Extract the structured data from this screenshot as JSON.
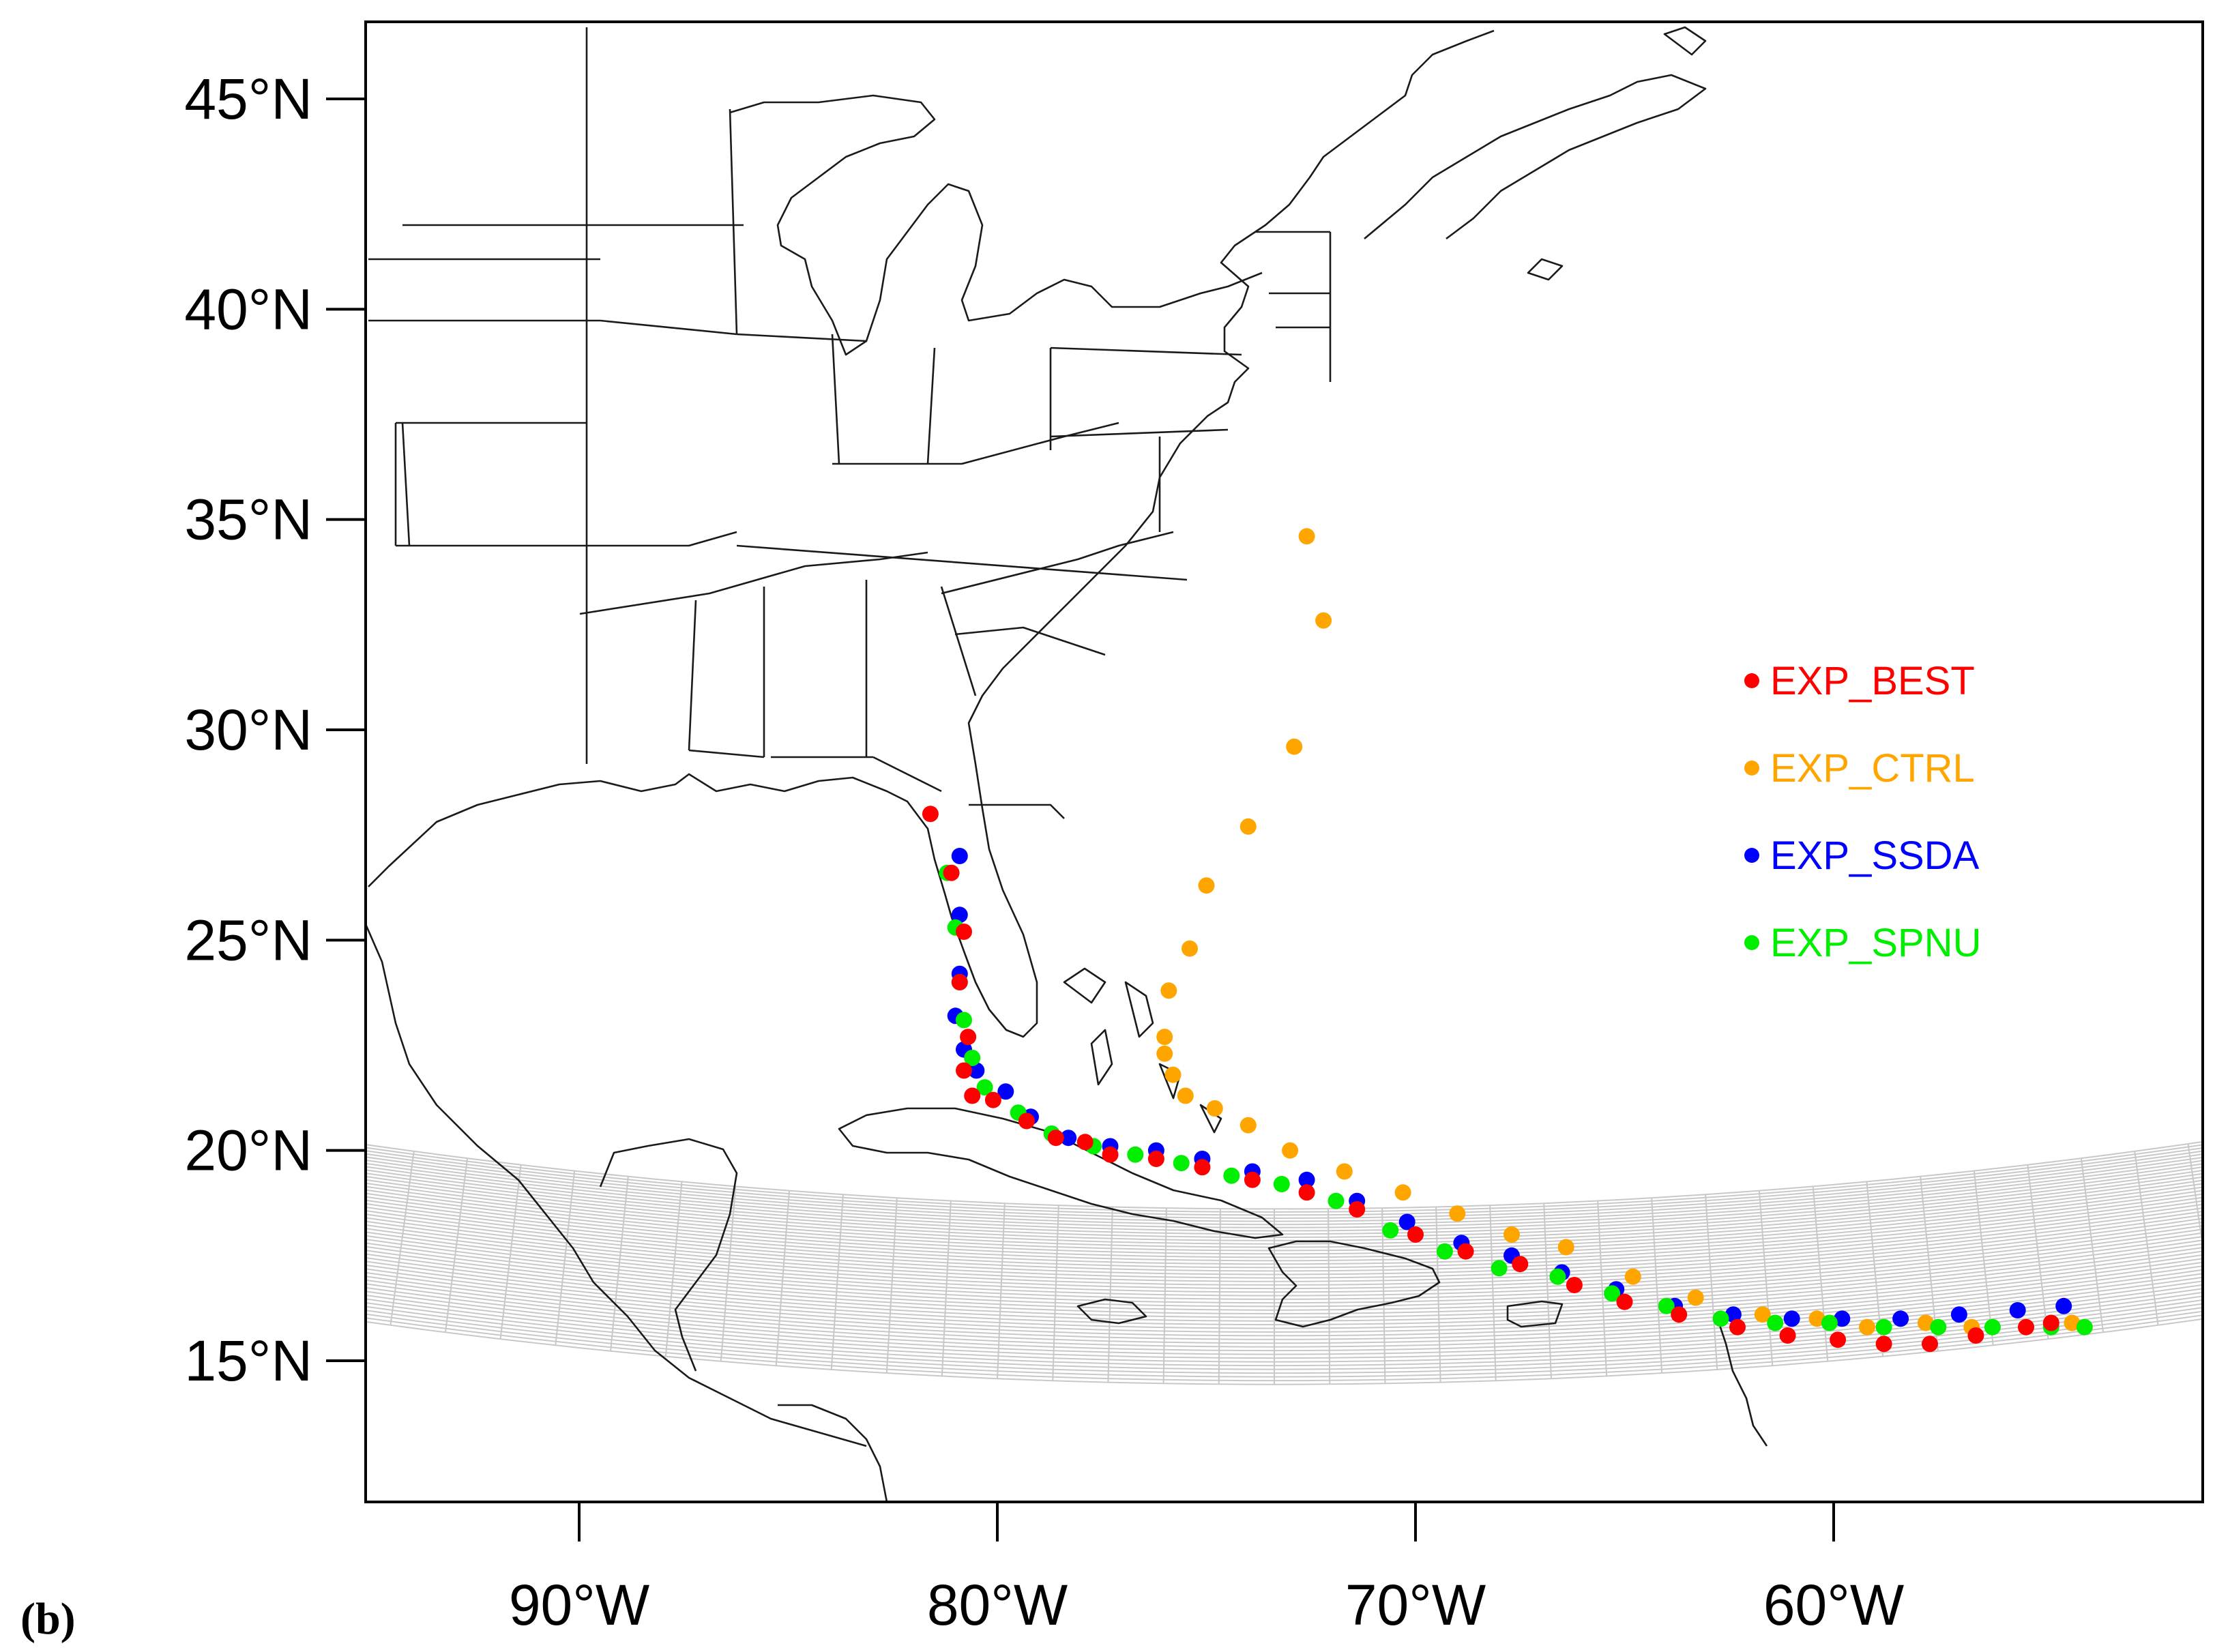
{
  "panel_label": "(b)",
  "colors": {
    "EXP_BEST": "#ff0000",
    "EXP_CTRL": "#ffa500",
    "EXP_SSDA": "#0000ff",
    "EXP_SPNU": "#00ee00",
    "grid": "#c8c8c8",
    "coast": "#1a1a1a",
    "frame": "#000000"
  },
  "axes": {
    "x_ticks": [
      {
        "lon": -90,
        "label": "90°W"
      },
      {
        "lon": -80,
        "label": "80°W"
      },
      {
        "lon": -70,
        "label": "70°W"
      },
      {
        "lon": -60,
        "label": "60°W"
      }
    ],
    "y_ticks": [
      {
        "lat": 45,
        "label": "45°N"
      },
      {
        "lat": 40,
        "label": "40°N"
      },
      {
        "lat": 35,
        "label": "35°N"
      },
      {
        "lat": 30,
        "label": "30°N"
      },
      {
        "lat": 25,
        "label": "25°N"
      },
      {
        "lat": 20,
        "label": "20°N"
      },
      {
        "lat": 15,
        "label": "15°N"
      }
    ],
    "lon_range": [
      -95,
      -50
    ],
    "lat_range": [
      11.5,
      46.8
    ],
    "grid_spacing_deg": 1
  },
  "legend": [
    {
      "key": "EXP_BEST",
      "label": "EXP_BEST"
    },
    {
      "key": "EXP_CTRL",
      "label": "EXP_CTRL"
    },
    {
      "key": "EXP_SSDA",
      "label": "EXP_SSDA"
    },
    {
      "key": "EXP_SPNU",
      "label": "EXP_SPNU"
    }
  ],
  "tracks": {
    "EXP_CTRL": [
      [
        -54.3,
        15.9
      ],
      [
        -55.4,
        15.8
      ],
      [
        -56.7,
        15.8
      ],
      [
        -57.8,
        15.9
      ],
      [
        -59.2,
        15.8
      ],
      [
        -60.4,
        16.0
      ],
      [
        -61.7,
        16.1
      ],
      [
        -63.3,
        16.5
      ],
      [
        -64.8,
        17.0
      ],
      [
        -66.4,
        17.7
      ],
      [
        -67.7,
        18.0
      ],
      [
        -69.0,
        18.5
      ],
      [
        -70.3,
        19.0
      ],
      [
        -71.7,
        19.5
      ],
      [
        -73.0,
        20.0
      ],
      [
        -74.0,
        20.6
      ],
      [
        -74.8,
        21.0
      ],
      [
        -75.5,
        21.3
      ],
      [
        -75.8,
        21.8
      ],
      [
        -76.0,
        22.3
      ],
      [
        -76.0,
        22.7
      ],
      [
        -75.9,
        23.8
      ],
      [
        -75.4,
        24.8
      ],
      [
        -75.0,
        26.3
      ],
      [
        -74.0,
        27.7
      ],
      [
        -72.9,
        29.6
      ],
      [
        -72.2,
        32.6
      ],
      [
        -72.6,
        34.6
      ]
    ],
    "EXP_BEST": [
      [
        -81.6,
        28.0
      ],
      [
        -81.1,
        26.6
      ],
      [
        -80.8,
        25.2
      ],
      [
        -80.9,
        24.0
      ],
      [
        -80.7,
        22.7
      ],
      [
        -80.8,
        21.9
      ],
      [
        -80.6,
        21.3
      ],
      [
        -80.1,
        21.2
      ],
      [
        -79.3,
        20.7
      ],
      [
        -78.6,
        20.3
      ],
      [
        -77.9,
        20.2
      ],
      [
        -77.3,
        19.9
      ],
      [
        -76.2,
        19.8
      ],
      [
        -75.1,
        19.6
      ],
      [
        -73.9,
        19.3
      ],
      [
        -72.6,
        19.0
      ],
      [
        -71.4,
        18.6
      ],
      [
        -70.0,
        18.0
      ],
      [
        -68.8,
        17.6
      ],
      [
        -67.5,
        17.3
      ],
      [
        -66.2,
        16.8
      ],
      [
        -65.0,
        16.4
      ],
      [
        -63.7,
        16.1
      ],
      [
        -62.3,
        15.8
      ],
      [
        -61.1,
        15.6
      ],
      [
        -59.9,
        15.5
      ],
      [
        -58.8,
        15.4
      ],
      [
        -57.7,
        15.4
      ],
      [
        -56.6,
        15.6
      ],
      [
        -55.4,
        15.8
      ],
      [
        -54.8,
        15.9
      ]
    ],
    "EXP_SSDA": [
      [
        -80.9,
        27.0
      ],
      [
        -80.9,
        25.6
      ],
      [
        -80.9,
        24.2
      ],
      [
        -81.0,
        23.2
      ],
      [
        -80.8,
        22.4
      ],
      [
        -80.5,
        21.9
      ],
      [
        -79.8,
        21.4
      ],
      [
        -79.2,
        20.8
      ],
      [
        -78.3,
        20.3
      ],
      [
        -77.3,
        20.1
      ],
      [
        -76.2,
        20.0
      ],
      [
        -75.1,
        19.8
      ],
      [
        -73.9,
        19.5
      ],
      [
        -72.6,
        19.3
      ],
      [
        -71.4,
        18.8
      ],
      [
        -70.2,
        18.3
      ],
      [
        -68.9,
        17.8
      ],
      [
        -67.7,
        17.5
      ],
      [
        -66.5,
        17.1
      ],
      [
        -65.2,
        16.7
      ],
      [
        -63.8,
        16.3
      ],
      [
        -62.4,
        16.1
      ],
      [
        -61.0,
        16.0
      ],
      [
        -59.8,
        16.0
      ],
      [
        -58.4,
        16.0
      ],
      [
        -57.0,
        16.1
      ],
      [
        -55.6,
        16.2
      ],
      [
        -54.5,
        16.3
      ]
    ],
    "EXP_SPNU": [
      [
        -81.2,
        26.6
      ],
      [
        -81.0,
        25.3
      ],
      [
        -80.9,
        24.0
      ],
      [
        -80.8,
        23.1
      ],
      [
        -80.6,
        22.2
      ],
      [
        -80.3,
        21.5
      ],
      [
        -79.5,
        20.9
      ],
      [
        -78.7,
        20.4
      ],
      [
        -77.7,
        20.1
      ],
      [
        -76.7,
        19.9
      ],
      [
        -75.6,
        19.7
      ],
      [
        -74.4,
        19.4
      ],
      [
        -73.2,
        19.2
      ],
      [
        -71.9,
        18.8
      ],
      [
        -70.6,
        18.1
      ],
      [
        -69.3,
        17.6
      ],
      [
        -68.0,
        17.2
      ],
      [
        -66.6,
        17.0
      ],
      [
        -65.3,
        16.6
      ],
      [
        -64.0,
        16.3
      ],
      [
        -62.7,
        16.0
      ],
      [
        -61.4,
        15.9
      ],
      [
        -60.1,
        15.9
      ],
      [
        -58.8,
        15.8
      ],
      [
        -57.5,
        15.8
      ],
      [
        -56.2,
        15.8
      ],
      [
        -54.8,
        15.8
      ],
      [
        -54.0,
        15.8
      ]
    ]
  }
}
